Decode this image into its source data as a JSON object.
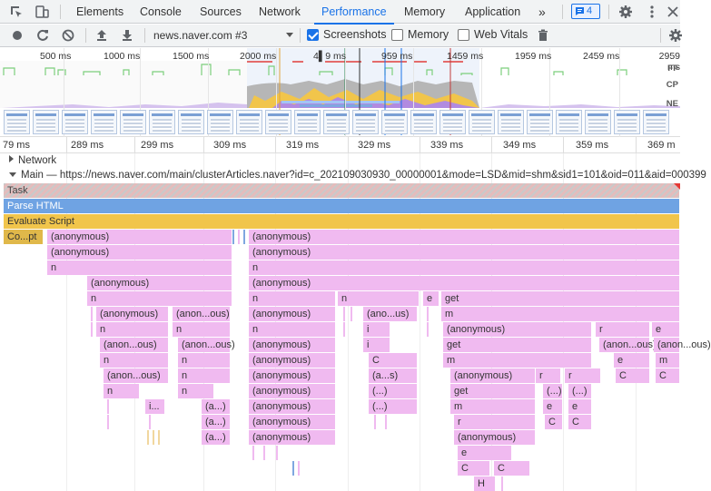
{
  "tabs": [
    {
      "label": "Elements",
      "active": false
    },
    {
      "label": "Console",
      "active": false
    },
    {
      "label": "Sources",
      "active": false
    },
    {
      "label": "Network",
      "active": false
    },
    {
      "label": "Performance",
      "active": true
    },
    {
      "label": "Memory",
      "active": false
    },
    {
      "label": "Application",
      "active": false
    }
  ],
  "more_tabs_glyph": "»",
  "issues_badge": {
    "count": "4",
    "icon": "message-icon",
    "color": "#1a73e8"
  },
  "toolbar": {
    "profile": "news.naver.com #3",
    "screenshots": {
      "label": "Screenshots",
      "checked": true
    },
    "memory": {
      "label": "Memory",
      "checked": false
    },
    "webvitals": {
      "label": "Web Vitals",
      "checked": false
    }
  },
  "overview": {
    "ticks": [
      "500 ms",
      "1000 ms",
      "1500 ms",
      "2000 ms",
      "4▌9 ms",
      "959 ms",
      "1459 ms",
      "1959 ms",
      "2459 ms",
      "2959 ms"
    ],
    "rows": [
      "FF",
      "CP",
      "NE"
    ]
  },
  "ruler": {
    "ticks": [
      "79 ms",
      "289 ms",
      "299 ms",
      "309 ms",
      "319 ms",
      "329 ms",
      "339 ms",
      "349 ms",
      "359 ms",
      "369 m"
    ]
  },
  "tracks": {
    "network": "Network",
    "main": "Main — https://news.naver.com/main/clusterArticles.naver?id=c_202109030930_00000001&mode=LSD&mid=shm&sid1=101&oid=011&aid=000399"
  },
  "flame": {
    "task": "Task",
    "parse": "Parse HTML",
    "evaluate": "Evaluate Script",
    "compile": "Co...pt",
    "anon": "(anonymous)",
    "anon_short": "(anon...ous)",
    "ano_us": "(ano...us)",
    "a_s": "(a...s)",
    "ellipsis": "(...)",
    "a_dot": "(a...)",
    "n": "n",
    "e": "e",
    "get": "get",
    "m": "m",
    "i": "i",
    "r": "r",
    "c": "C",
    "h": "H",
    "i_dots": "i..."
  },
  "colors": {
    "accent": "#1a73e8",
    "scripting": "#f0baf0",
    "evaluate": "#f1c54b",
    "parse": "#6fa3e3"
  }
}
